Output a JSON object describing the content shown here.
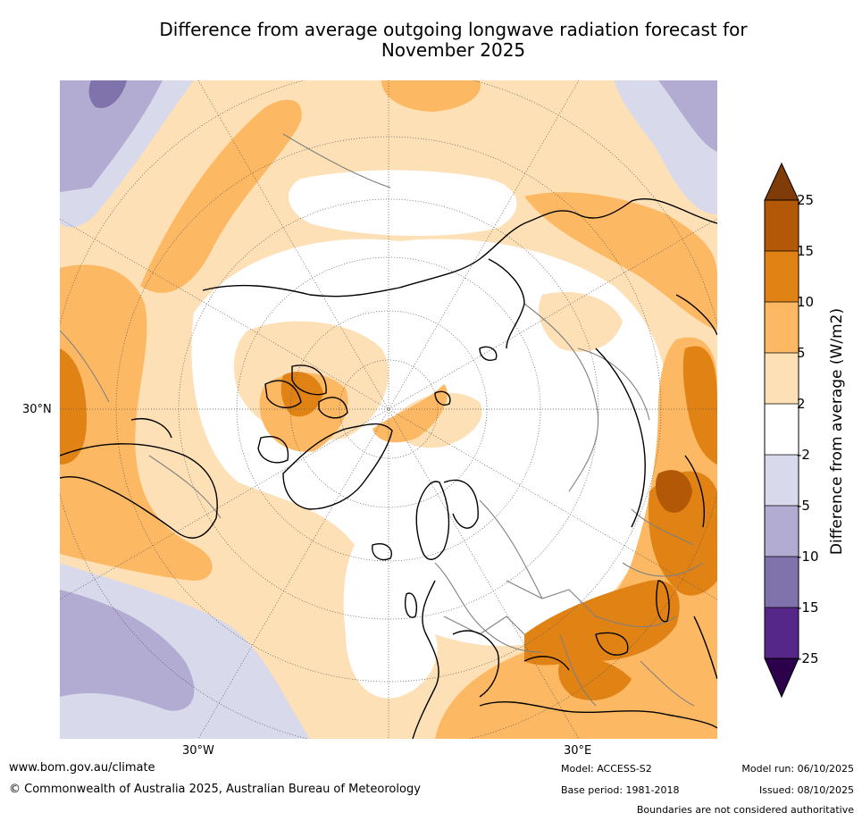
{
  "title_lines": [
    "Difference from average outgoing longwave radiation forecast for",
    "November 2025"
  ],
  "map": {
    "projection": "north-polar-stereographic",
    "lat_labels": [
      "30°N"
    ],
    "lon_labels": [
      "30°W",
      "30°E"
    ],
    "features": [
      "continents",
      "country boundaries",
      "Arctic region",
      "Greenland",
      "Europe",
      "Siberia",
      "North America"
    ]
  },
  "colorbar": {
    "label": "Difference from average (W/m2)",
    "levels": [
      "25",
      "15",
      "10",
      "5",
      "2",
      "-2",
      "-5",
      "-10",
      "-15",
      "-25"
    ],
    "colors": [
      "#7f3b08",
      "#b35806",
      "#e08214",
      "#fdb863",
      "#fee0b6",
      "#ffffff",
      "#d8daeb",
      "#b2abd2",
      "#8073ac",
      "#542788",
      "#2d004b"
    ]
  },
  "footer": {
    "url": "www.bom.gov.au/climate",
    "copyright": "© Commonwealth of Australia 2025, Australian Bureau of Meteorology",
    "model": "Model: ACCESS-S2",
    "base_period": "Base period: 1981-2018",
    "model_run": "Model run: 06/10/2025",
    "issued": "Issued: 08/10/2025",
    "disclaimer": "Boundaries are not considered authoritative"
  }
}
